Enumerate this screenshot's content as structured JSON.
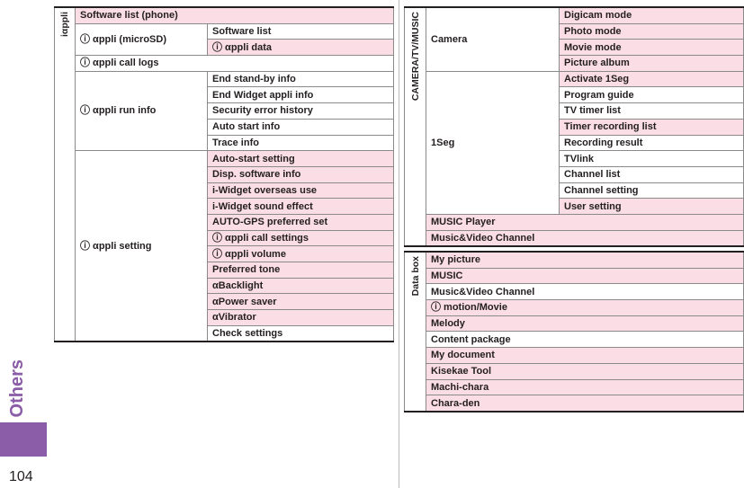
{
  "sidebar": {
    "section": "Others",
    "page": "104"
  },
  "left_table": {
    "header": "iαppli",
    "rows": [
      [
        "Software list (phone)"
      ],
      [
        "ⓘ αppli (microSD)",
        "Software list"
      ],
      [
        "ⓘ αppli data"
      ],
      [
        "ⓘ αppli call logs"
      ],
      [
        "ⓘ αppli run info",
        "End stand-by info"
      ],
      [
        "End Widget appli info"
      ],
      [
        "Security error history"
      ],
      [
        "Auto start info"
      ],
      [
        "Trace info"
      ],
      [
        "ⓘ αppli setting",
        "Auto-start setting"
      ],
      [
        "Disp. software info"
      ],
      [
        "i-Widget overseas use"
      ],
      [
        "i-Widget sound effect"
      ],
      [
        "AUTO-GPS preferred set"
      ],
      [
        "ⓘ αppli call settings"
      ],
      [
        "ⓘ αppli volume"
      ],
      [
        "Preferred tone"
      ],
      [
        "αBacklight"
      ],
      [
        "αPower saver"
      ],
      [
        "αVibrator"
      ],
      [
        "Check settings"
      ]
    ]
  },
  "camera_table": {
    "header": "CAMERA/TV/MUSIC",
    "rows": [
      [
        "Camera",
        "Digicam mode"
      ],
      [
        "Photo mode"
      ],
      [
        "Movie mode"
      ],
      [
        "Picture album"
      ],
      [
        "1Seg",
        "Activate 1Seg"
      ],
      [
        "Program guide"
      ],
      [
        "TV timer list"
      ],
      [
        "Timer recording list"
      ],
      [
        "Recording result"
      ],
      [
        "TVlink"
      ],
      [
        "Channel list"
      ],
      [
        "Channel setting"
      ],
      [
        "User setting"
      ],
      [
        "MUSIC Player"
      ],
      [
        "Music&Video Channel"
      ]
    ]
  },
  "data_box_table": {
    "header": "Data box",
    "rows": [
      "My picture",
      "MUSIC",
      "Music&Video Channel",
      "ⓘ motion/Movie",
      "Melody",
      "Content package",
      "My document",
      "Kisekae Tool",
      "Machi-chara",
      "Chara-den"
    ]
  }
}
